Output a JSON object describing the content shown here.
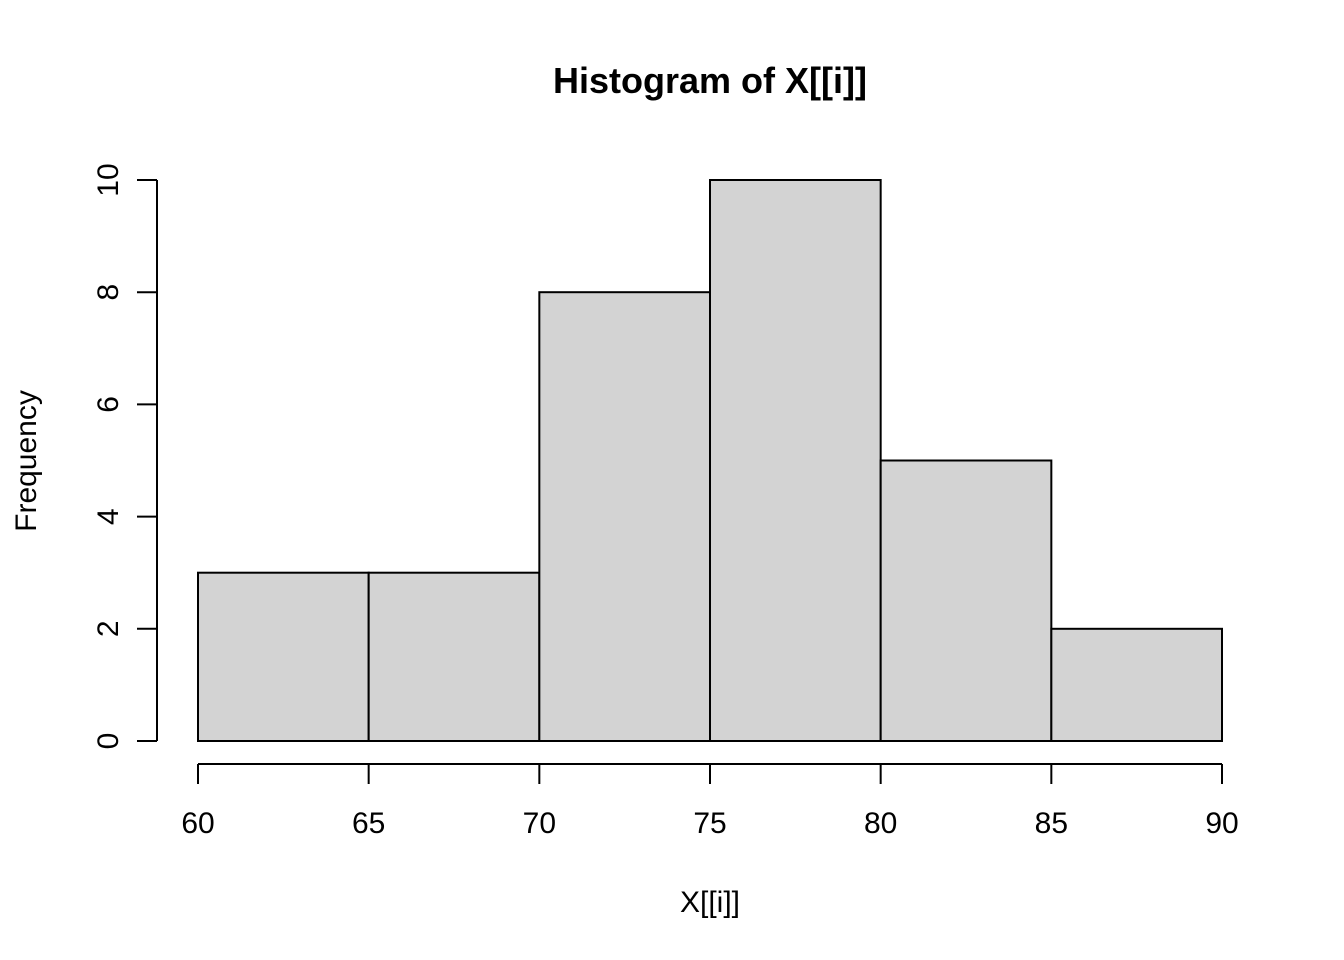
{
  "chart_data": {
    "type": "bar",
    "title": "Histogram of X[[i]]",
    "xlabel": "X[[i]]",
    "ylabel": "Frequency",
    "bins": [
      {
        "from": 60,
        "to": 65,
        "count": 3
      },
      {
        "from": 65,
        "to": 70,
        "count": 3
      },
      {
        "from": 70,
        "to": 75,
        "count": 8
      },
      {
        "from": 75,
        "to": 80,
        "count": 10
      },
      {
        "from": 80,
        "to": 85,
        "count": 5
      },
      {
        "from": 85,
        "to": 90,
        "count": 2
      }
    ],
    "x_ticks": [
      60,
      65,
      70,
      75,
      80,
      85,
      90
    ],
    "y_ticks": [
      0,
      2,
      4,
      6,
      8,
      10
    ],
    "xlim": [
      60,
      90
    ],
    "ylim": [
      0,
      10
    ],
    "grid": false,
    "bar_fill": "#d3d3d3",
    "bar_stroke": "#000000"
  }
}
